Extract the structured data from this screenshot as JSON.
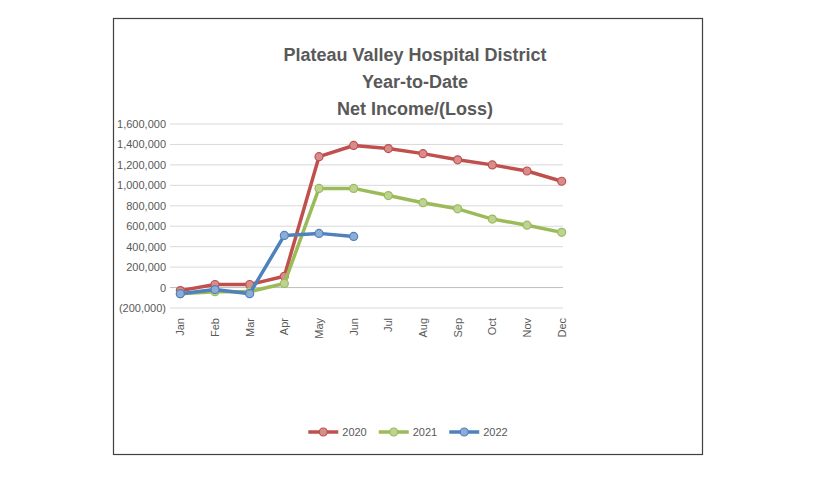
{
  "chart_data": {
    "type": "line",
    "title": [
      "Plateau Valley Hospital District",
      "Year-to-Date",
      "Net Income/(Loss)"
    ],
    "categories": [
      "Jan",
      "Feb",
      "Mar",
      "Apr",
      "May",
      "Jun",
      "Jul",
      "Aug",
      "Sep",
      "Oct",
      "Nov",
      "Dec"
    ],
    "series": [
      {
        "name": "2020",
        "color": "#c0504d",
        "marker": "circle",
        "line_style": "solid",
        "values": [
          -30000,
          30000,
          30000,
          110000,
          1280000,
          1390000,
          1360000,
          1310000,
          1250000,
          1200000,
          1140000,
          1040000
        ]
      },
      {
        "name": "2021",
        "color": "#9bbb59",
        "marker": "circle",
        "line_style": "solid",
        "values": [
          -60000,
          -40000,
          -40000,
          40000,
          970000,
          970000,
          900000,
          830000,
          770000,
          670000,
          610000,
          540000
        ]
      },
      {
        "name": "2022",
        "color": "#4f81bd",
        "marker": "circle",
        "line_style": "solid",
        "values": [
          -60000,
          -20000,
          -60000,
          510000,
          530000,
          500000,
          null,
          null,
          null,
          null,
          null,
          null
        ]
      }
    ],
    "ylim": [
      -200000,
      1600000
    ],
    "yticks": [
      {
        "value": -200000,
        "label": "(200,000)"
      },
      0,
      {
        "value": 200000,
        "label": "200,000"
      },
      {
        "value": 400000,
        "label": "400,000"
      },
      {
        "value": 600000,
        "label": "600,000"
      },
      {
        "value": 800000,
        "label": "800,000"
      },
      {
        "value": 1000000,
        "label": "1,000,000"
      },
      {
        "value": 1200000,
        "label": "1,200,000"
      },
      {
        "value": 1400000,
        "label": "1,400,000"
      },
      {
        "value": 1600000,
        "label": "1,600,000"
      }
    ],
    "grid": true,
    "legend": "bottom"
  }
}
